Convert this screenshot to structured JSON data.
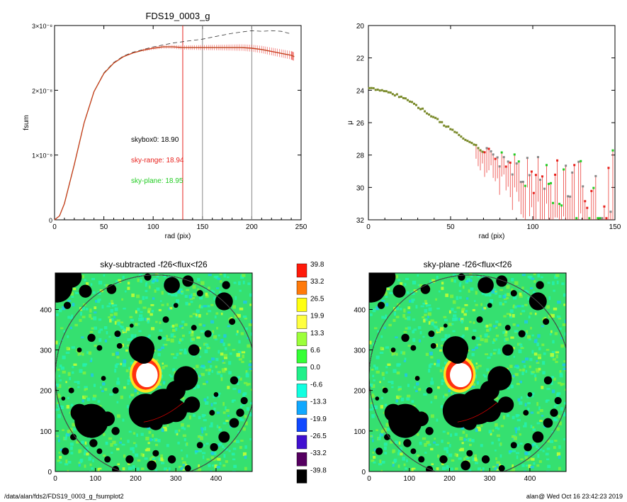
{
  "footer": {
    "path": "/data/alan/fds2/FDS19_0003_g_fsumplot2",
    "user_time": "alan@  Wed Oct 16 23:42:23 2019"
  },
  "colors": {
    "model": "#000000",
    "range": "#e8231e",
    "plane": "#22cc22",
    "olive": "#7a8a2a",
    "colorbar": [
      "#ff1a0a",
      "#ff7a0a",
      "#ffff10",
      "#ffff40",
      "#9cff3a",
      "#35ff35",
      "#20f08a",
      "#10ffe0",
      "#10a8ff",
      "#1048ff",
      "#4010d0",
      "#550060",
      "#000000"
    ]
  },
  "chart_data": [
    {
      "id": "fsum",
      "type": "line",
      "title": "FDS19_0003_g",
      "xlabel": "rad (pix)",
      "ylabel": "fsum",
      "xlim": [
        0,
        250
      ],
      "ylim": [
        0,
        3e-08
      ],
      "xticks": [
        0,
        50,
        100,
        150,
        200,
        250
      ],
      "yticks": [
        {
          "v": 0,
          "label": "0"
        },
        {
          "v": 1e-08,
          "label": "1×10⁻⁸"
        },
        {
          "v": 2e-08,
          "label": "2×10⁻⁸"
        },
        {
          "v": 3e-08,
          "label": "3×10⁻⁸"
        }
      ],
      "vlines": [
        {
          "x": 130,
          "color": "red"
        },
        {
          "x": 150,
          "color": "gray"
        },
        {
          "x": 200,
          "color": "gray"
        }
      ],
      "annotations": [
        {
          "text": "skybox0: 18.90",
          "color": "black"
        },
        {
          "text": "sky-range: 18.94",
          "color": "red"
        },
        {
          "text": "sky-plane: 18.95",
          "color": "green"
        }
      ],
      "series": [
        {
          "style": "dashed",
          "color": "black",
          "x": [
            0,
            5,
            10,
            20,
            30,
            40,
            50,
            60,
            70,
            80,
            90,
            100,
            110,
            120,
            130,
            140,
            150,
            160,
            170,
            180,
            190,
            200,
            210,
            220,
            230,
            240
          ],
          "y": [
            0,
            6e-10,
            2.5e-09,
            8.5e-09,
            1.5e-08,
            1.98e-08,
            2.27e-08,
            2.43e-08,
            2.53e-08,
            2.59e-08,
            2.63e-08,
            2.67e-08,
            2.7e-08,
            2.73e-08,
            2.75e-08,
            2.77e-08,
            2.79e-08,
            2.82e-08,
            2.85e-08,
            2.88e-08,
            2.9e-08,
            2.92e-08,
            2.91e-08,
            2.92e-08,
            2.91e-08,
            2.87e-08
          ]
        },
        {
          "style": "solid",
          "color": "red",
          "x": [
            0,
            5,
            10,
            20,
            30,
            40,
            50,
            60,
            70,
            80,
            90,
            100,
            110,
            120,
            130,
            140,
            150,
            160,
            170,
            180,
            190,
            200,
            210,
            220,
            230,
            240,
            243
          ],
          "y": [
            0,
            6e-10,
            2.5e-09,
            8.5e-09,
            1.5e-08,
            1.98e-08,
            2.26e-08,
            2.42e-08,
            2.52e-08,
            2.58e-08,
            2.62e-08,
            2.65e-08,
            2.67e-08,
            2.67e-08,
            2.66e-08,
            2.66e-08,
            2.66e-08,
            2.66e-08,
            2.66e-08,
            2.66e-08,
            2.66e-08,
            2.65e-08,
            2.63e-08,
            2.6e-08,
            2.57e-08,
            2.54e-08,
            2.52e-08
          ]
        }
      ]
    },
    {
      "id": "mu",
      "type": "scatter",
      "title": "",
      "xlabel": "rad (pix)",
      "ylabel": "μ",
      "xlim": [
        0,
        150
      ],
      "ylim": [
        32,
        20
      ],
      "xticks": [
        0,
        50,
        100,
        150
      ],
      "yticks": [
        20,
        22,
        24,
        26,
        28,
        30,
        32
      ],
      "trend": [
        [
          0,
          23.9
        ],
        [
          10,
          24.0
        ],
        [
          20,
          24.4
        ],
        [
          30,
          25.0
        ],
        [
          40,
          25.7
        ],
        [
          50,
          26.4
        ],
        [
          60,
          27.1
        ],
        [
          70,
          27.8
        ],
        [
          80,
          28.3
        ],
        [
          90,
          28.7
        ],
        [
          100,
          29.2
        ],
        [
          110,
          29.6
        ],
        [
          120,
          30.0
        ],
        [
          130,
          30.1
        ],
        [
          140,
          30.2
        ],
        [
          150,
          30.4
        ]
      ]
    },
    {
      "id": "img1",
      "type": "heatmap",
      "title": "sky-subtracted -f26<flux<f26",
      "xlim": [
        0,
        490
      ],
      "ylim": [
        0,
        490
      ],
      "xticks": [
        0,
        100,
        200,
        300,
        400
      ],
      "yticks": [
        0,
        100,
        200,
        300,
        400
      ]
    },
    {
      "id": "img2",
      "type": "heatmap",
      "title": "sky-plane -f26<flux<f26",
      "xlim": [
        0,
        490
      ],
      "ylim": [
        0,
        490
      ],
      "xticks": [
        0,
        100,
        200,
        300,
        400
      ],
      "yticks": [
        0,
        100,
        200,
        300,
        400
      ]
    },
    {
      "id": "colorbar",
      "type": "colorbar",
      "labels": [
        "39.8",
        "33.2",
        "26.5",
        "19.9",
        "13.3",
        "6.6",
        "0.0",
        "-6.6",
        "-13.3",
        "-19.9",
        "-26.5",
        "-33.2",
        "-39.8"
      ]
    }
  ]
}
